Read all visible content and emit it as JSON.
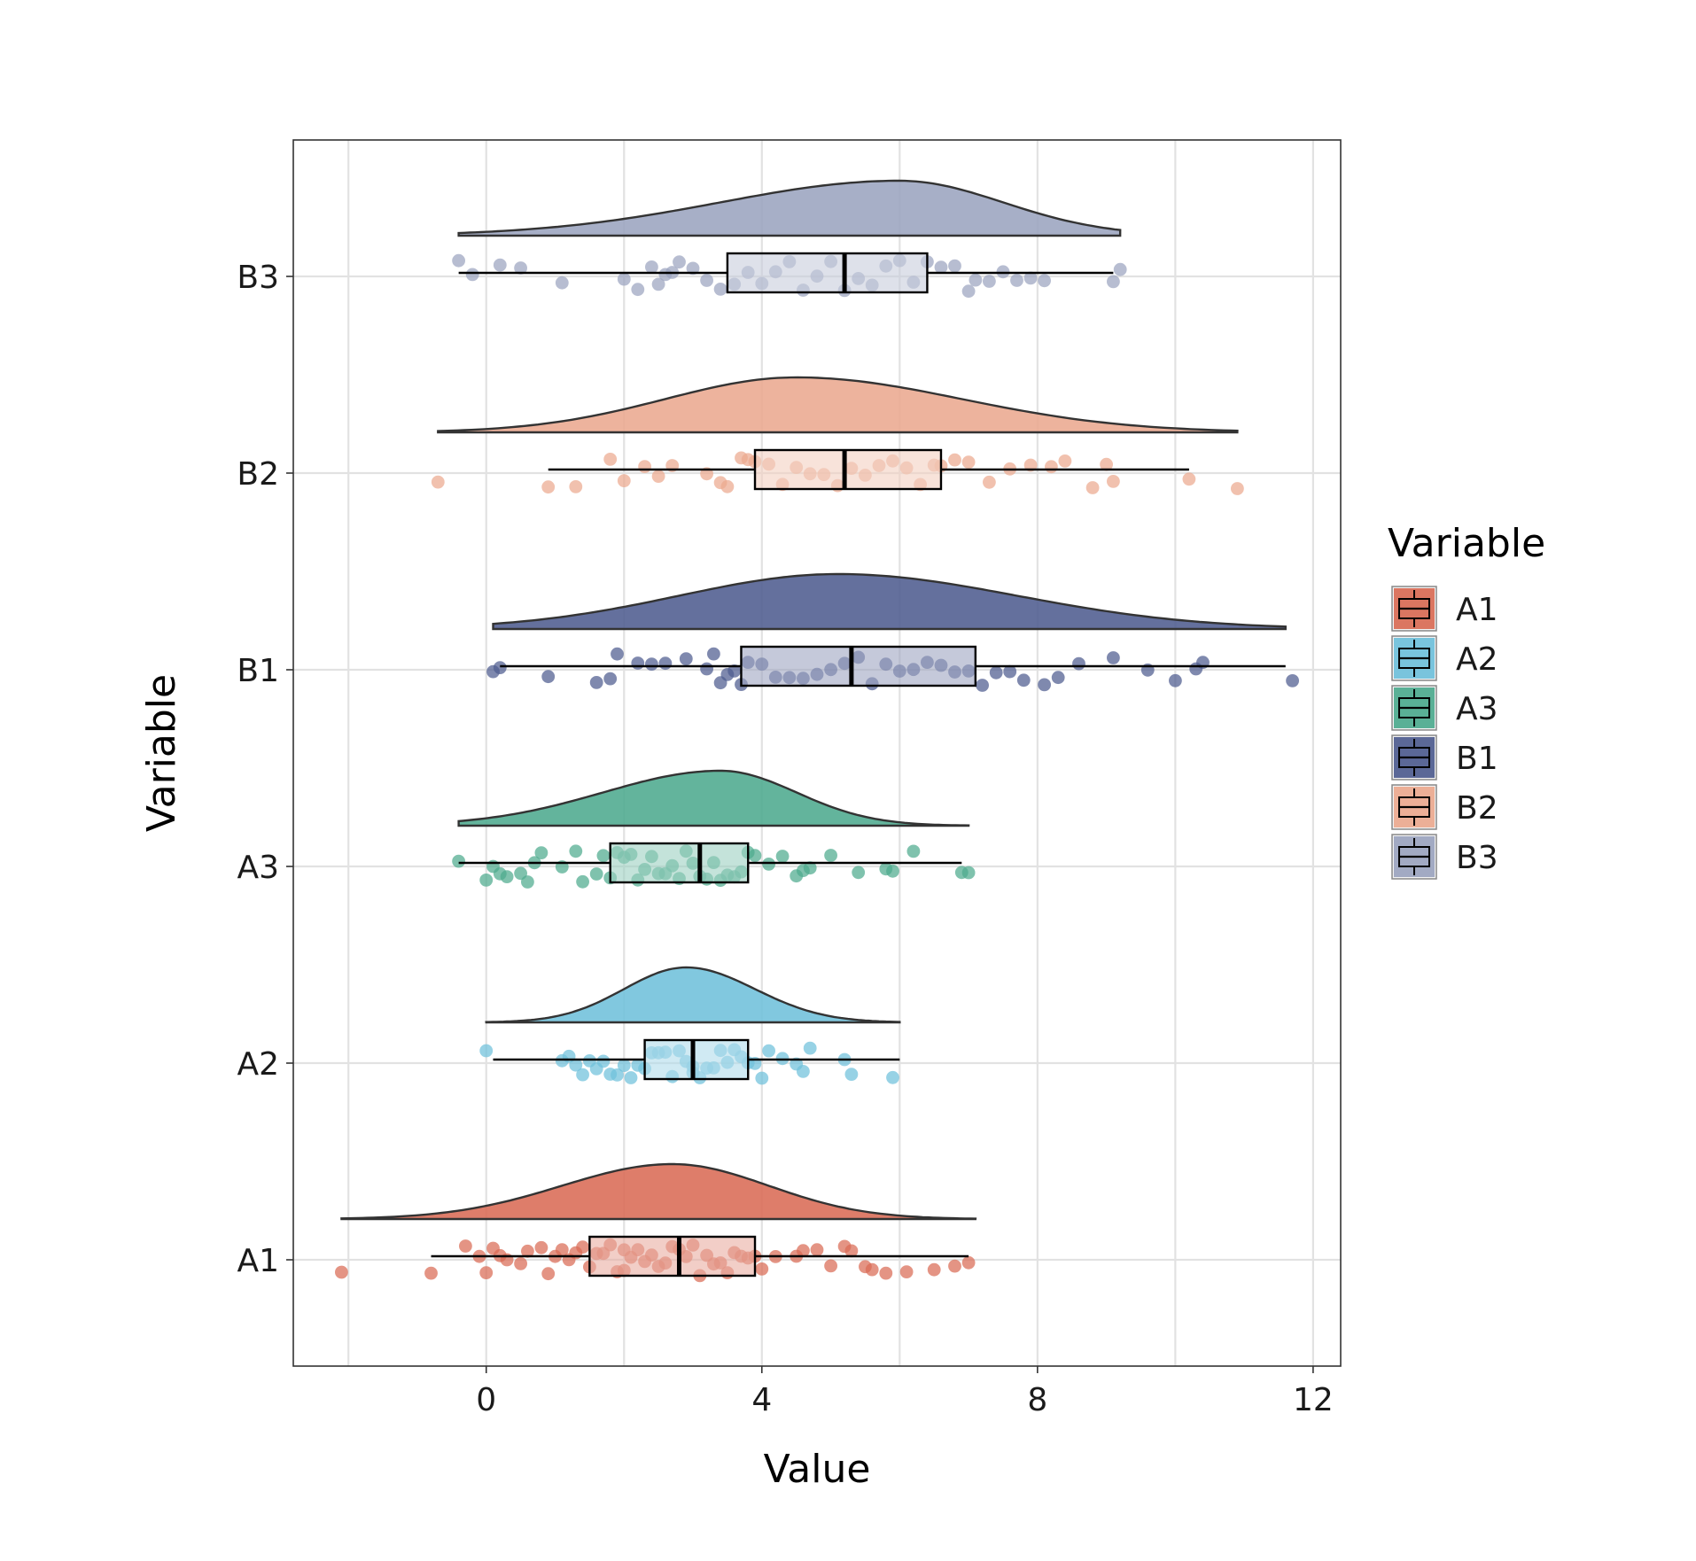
{
  "chart_data": {
    "type": "raincloud",
    "orientation": "horizontal",
    "xlabel": "Value",
    "ylabel": "Variable",
    "xlim": [
      -2.8,
      12.4
    ],
    "x_ticks": [
      0,
      4,
      8,
      12
    ],
    "x_tick_labels": [
      "0",
      "4",
      "8",
      "12"
    ],
    "grid": true,
    "legend": {
      "title": "Variable",
      "placement": "right",
      "entries": [
        "A1",
        "A2",
        "A3",
        "B1",
        "B2",
        "B3"
      ]
    },
    "categories": [
      "A1",
      "A2",
      "A3",
      "B1",
      "B2",
      "B3"
    ],
    "series": [
      {
        "name": "A1",
        "color": "#D96B55",
        "box": {
          "whisker_low": -0.8,
          "q1": 1.5,
          "median": 2.8,
          "q3": 3.9,
          "whisker_high": 7.0
        },
        "density": {
          "min": -2.1,
          "max": 7.1,
          "peak": 2.7,
          "spread_left": 1.6,
          "spread_right": 1.4
        },
        "points": [
          -2.1,
          -0.8,
          -0.3,
          -0.1,
          0.0,
          0.1,
          0.2,
          0.3,
          0.5,
          0.6,
          0.8,
          0.9,
          1.0,
          1.1,
          1.2,
          1.3,
          1.4,
          1.5,
          1.6,
          1.7,
          1.8,
          1.9,
          2.0,
          2.0,
          2.1,
          2.2,
          2.3,
          2.4,
          2.5,
          2.6,
          2.7,
          2.8,
          2.9,
          3.0,
          3.1,
          3.2,
          3.3,
          3.4,
          3.5,
          3.6,
          3.7,
          3.8,
          3.9,
          4.0,
          4.2,
          4.5,
          4.6,
          4.8,
          5.0,
          5.2,
          5.3,
          5.5,
          5.6,
          5.8,
          6.1,
          6.5,
          6.8,
          7.0
        ]
      },
      {
        "name": "A2",
        "color": "#6FC0DB",
        "box": {
          "whisker_low": 0.1,
          "q1": 2.3,
          "median": 3.0,
          "q3": 3.8,
          "whisker_high": 6.0
        },
        "density": {
          "min": 0.0,
          "max": 6.0,
          "peak": 2.9,
          "spread_left": 0.9,
          "spread_right": 1.0
        },
        "points": [
          0.0,
          1.1,
          1.2,
          1.3,
          1.4,
          1.5,
          1.6,
          1.7,
          1.8,
          1.9,
          2.0,
          2.1,
          2.2,
          2.3,
          2.4,
          2.5,
          2.6,
          2.7,
          2.8,
          2.9,
          3.0,
          3.0,
          3.1,
          3.2,
          3.3,
          3.4,
          3.5,
          3.6,
          3.7,
          3.8,
          3.9,
          4.0,
          4.1,
          4.3,
          4.5,
          4.6,
          4.7,
          5.2,
          5.3,
          5.9
        ]
      },
      {
        "name": "A3",
        "color": "#4DAA8E",
        "box": {
          "whisker_low": -0.4,
          "q1": 1.8,
          "median": 3.1,
          "q3": 3.8,
          "whisker_high": 6.9
        },
        "density": {
          "min": -0.4,
          "max": 7.0,
          "peak": 3.4,
          "spread_left": 1.7,
          "spread_right": 1.1
        },
        "points": [
          -0.4,
          0.0,
          0.1,
          0.2,
          0.3,
          0.5,
          0.6,
          0.7,
          0.8,
          1.1,
          1.3,
          1.4,
          1.6,
          1.7,
          1.8,
          1.9,
          2.0,
          2.1,
          2.2,
          2.3,
          2.4,
          2.5,
          2.6,
          2.7,
          2.8,
          2.9,
          3.0,
          3.1,
          3.2,
          3.3,
          3.4,
          3.5,
          3.6,
          3.7,
          3.8,
          3.9,
          4.1,
          4.3,
          4.5,
          4.6,
          4.7,
          5.0,
          5.4,
          5.8,
          5.9,
          6.2,
          6.9,
          7.0
        ]
      },
      {
        "name": "B1",
        "color": "#4E5C8F",
        "box": {
          "whisker_low": 0.2,
          "q1": 3.7,
          "median": 5.3,
          "q3": 7.1,
          "whisker_high": 11.6
        },
        "density": {
          "min": 0.1,
          "max": 11.6,
          "peak": 5.1,
          "spread_left": 2.3,
          "spread_right": 2.6
        },
        "points": [
          0.1,
          0.2,
          0.9,
          1.6,
          1.8,
          1.9,
          2.2,
          2.4,
          2.6,
          2.9,
          3.2,
          3.3,
          3.4,
          3.5,
          3.6,
          3.7,
          3.8,
          4.0,
          4.2,
          4.4,
          4.6,
          4.8,
          5.0,
          5.2,
          5.4,
          5.6,
          5.8,
          6.0,
          6.2,
          6.4,
          6.6,
          6.8,
          7.0,
          7.2,
          7.4,
          7.6,
          7.8,
          8.1,
          8.3,
          8.6,
          9.1,
          9.6,
          10.0,
          10.3,
          10.4,
          11.7
        ]
      },
      {
        "name": "B2",
        "color": "#EBA98F",
        "box": {
          "whisker_low": 0.9,
          "q1": 3.9,
          "median": 5.2,
          "q3": 6.6,
          "whisker_high": 10.2
        },
        "density": {
          "min": -0.7,
          "max": 10.9,
          "peak": 4.5,
          "spread_left": 1.9,
          "spread_right": 2.4
        },
        "points": [
          -0.7,
          0.9,
          1.3,
          1.8,
          2.0,
          2.3,
          2.5,
          2.7,
          3.2,
          3.4,
          3.5,
          3.7,
          3.8,
          3.9,
          4.1,
          4.3,
          4.5,
          4.7,
          4.9,
          5.1,
          5.3,
          5.5,
          5.7,
          5.9,
          6.1,
          6.3,
          6.5,
          6.6,
          6.8,
          7.0,
          7.3,
          7.6,
          7.9,
          8.2,
          8.4,
          8.8,
          9.0,
          9.1,
          10.2,
          10.9
        ]
      },
      {
        "name": "B3",
        "color": "#9BA4BF",
        "box": {
          "whisker_low": -0.4,
          "q1": 3.5,
          "median": 5.2,
          "q3": 6.4,
          "whisker_high": 9.1
        },
        "density": {
          "min": -0.4,
          "max": 9.2,
          "peak": 6.0,
          "spread_left": 2.6,
          "spread_right": 1.5
        },
        "points": [
          -0.4,
          -0.2,
          0.2,
          0.5,
          1.1,
          2.0,
          2.2,
          2.4,
          2.5,
          2.6,
          2.7,
          2.8,
          3.0,
          3.2,
          3.4,
          3.6,
          3.8,
          4.0,
          4.2,
          4.4,
          4.6,
          4.8,
          5.0,
          5.2,
          5.4,
          5.6,
          5.8,
          6.0,
          6.2,
          6.4,
          6.6,
          6.8,
          7.0,
          7.1,
          7.3,
          7.5,
          7.7,
          7.9,
          8.1,
          9.1,
          9.2
        ]
      }
    ]
  }
}
